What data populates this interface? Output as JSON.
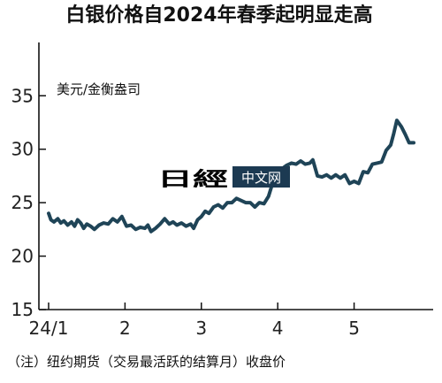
{
  "chart_data": {
    "type": "line",
    "title": "白银价格自2024年春季起明显走高",
    "unit_label": "美元/金衡盎司",
    "note": "（注）纽约期货（交易最活跃的结算月）收盘价",
    "ylim": [
      15,
      38
    ],
    "yticks": [
      15,
      20,
      25,
      30,
      35
    ],
    "xlim": [
      1,
      5.85
    ],
    "xticks": [
      {
        "x": 1,
        "label": "24/1"
      },
      {
        "x": 2,
        "label": "2"
      },
      {
        "x": 3,
        "label": "3"
      },
      {
        "x": 4,
        "label": "4"
      },
      {
        "x": 5,
        "label": "5"
      }
    ],
    "grid": false,
    "line_color": "#1f4457",
    "series": [
      {
        "points": [
          [
            1.0,
            24.0
          ],
          [
            1.03,
            23.4
          ],
          [
            1.07,
            23.2
          ],
          [
            1.12,
            23.5
          ],
          [
            1.16,
            23.1
          ],
          [
            1.2,
            23.3
          ],
          [
            1.25,
            22.9
          ],
          [
            1.3,
            23.2
          ],
          [
            1.34,
            22.8
          ],
          [
            1.38,
            23.4
          ],
          [
            1.42,
            23.1
          ],
          [
            1.46,
            22.6
          ],
          [
            1.5,
            23.0
          ],
          [
            1.55,
            22.8
          ],
          [
            1.6,
            22.5
          ],
          [
            1.66,
            22.9
          ],
          [
            1.72,
            23.1
          ],
          [
            1.78,
            23.0
          ],
          [
            1.84,
            23.5
          ],
          [
            1.9,
            23.2
          ],
          [
            1.96,
            23.7
          ],
          [
            2.02,
            22.8
          ],
          [
            2.08,
            22.9
          ],
          [
            2.14,
            22.5
          ],
          [
            2.2,
            22.7
          ],
          [
            2.26,
            22.6
          ],
          [
            2.3,
            22.9
          ],
          [
            2.34,
            22.3
          ],
          [
            2.4,
            22.6
          ],
          [
            2.46,
            23.0
          ],
          [
            2.52,
            23.5
          ],
          [
            2.58,
            23.0
          ],
          [
            2.63,
            23.2
          ],
          [
            2.68,
            22.9
          ],
          [
            2.74,
            23.1
          ],
          [
            2.8,
            22.8
          ],
          [
            2.86,
            23.0
          ],
          [
            2.9,
            22.6
          ],
          [
            2.95,
            23.4
          ],
          [
            3.0,
            23.7
          ],
          [
            3.05,
            24.2
          ],
          [
            3.1,
            24.0
          ],
          [
            3.16,
            24.6
          ],
          [
            3.22,
            24.8
          ],
          [
            3.28,
            24.5
          ],
          [
            3.34,
            25.0
          ],
          [
            3.4,
            25.0
          ],
          [
            3.46,
            25.4
          ],
          [
            3.52,
            25.2
          ],
          [
            3.58,
            25.0
          ],
          [
            3.64,
            25.0
          ],
          [
            3.7,
            24.6
          ],
          [
            3.76,
            25.0
          ],
          [
            3.82,
            24.9
          ],
          [
            3.88,
            25.6
          ],
          [
            3.94,
            27.0
          ],
          [
            4.0,
            28.0
          ],
          [
            4.06,
            28.2
          ],
          [
            4.12,
            28.5
          ],
          [
            4.18,
            28.7
          ],
          [
            4.24,
            28.6
          ],
          [
            4.3,
            28.9
          ],
          [
            4.36,
            28.6
          ],
          [
            4.42,
            28.7
          ],
          [
            4.46,
            29.0
          ],
          [
            4.52,
            27.5
          ],
          [
            4.58,
            27.4
          ],
          [
            4.64,
            27.6
          ],
          [
            4.7,
            27.3
          ],
          [
            4.76,
            27.6
          ],
          [
            4.82,
            27.3
          ],
          [
            4.88,
            27.6
          ],
          [
            4.94,
            26.8
          ],
          [
            5.0,
            27.0
          ],
          [
            5.06,
            26.8
          ],
          [
            5.12,
            27.9
          ],
          [
            5.18,
            27.8
          ],
          [
            5.24,
            28.6
          ],
          [
            5.3,
            28.7
          ],
          [
            5.36,
            28.8
          ],
          [
            5.42,
            29.9
          ],
          [
            5.48,
            30.4
          ],
          [
            5.52,
            31.5
          ],
          [
            5.56,
            32.7
          ],
          [
            5.62,
            32.1
          ],
          [
            5.67,
            31.4
          ],
          [
            5.72,
            30.6
          ],
          [
            5.78,
            30.6
          ]
        ]
      }
    ]
  },
  "watermark": {
    "logo_text": "日經",
    "label": "中文网"
  }
}
